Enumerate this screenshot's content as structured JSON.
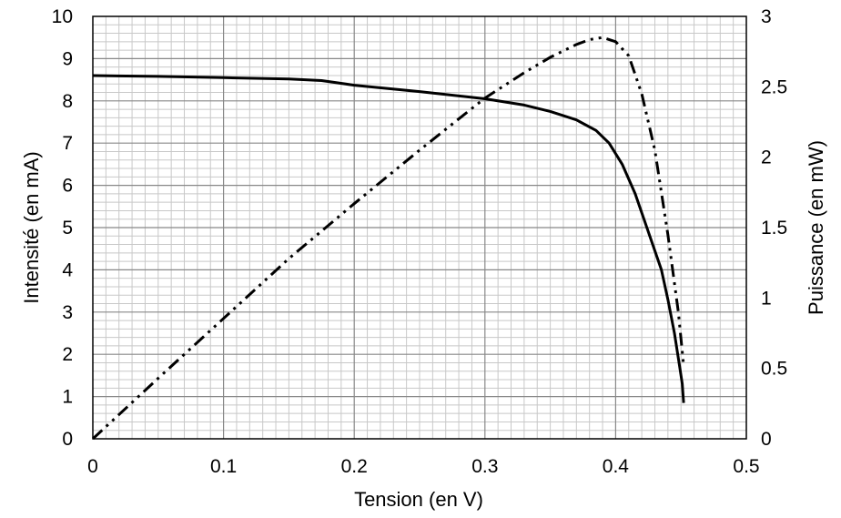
{
  "chart_data": {
    "type": "line",
    "xlabel": "Tension  (en V)",
    "ylabel_left": "Intensité  (en mA)",
    "ylabel_right": "Puissance (en mW)",
    "xlim": [
      0,
      0.5
    ],
    "ylim_left": [
      0,
      10
    ],
    "ylim_right": [
      0,
      3
    ],
    "grid": true,
    "x_ticks": [
      "0",
      "0.1",
      "0.2",
      "0.3",
      "0.4",
      "0.5"
    ],
    "y_left_ticks": [
      "0",
      "1",
      "2",
      "3",
      "4",
      "5",
      "6",
      "7",
      "8",
      "9",
      "10"
    ],
    "y_right_ticks": [
      "0",
      "0.5",
      "1",
      "1.5",
      "2",
      "2.5",
      "3"
    ],
    "series": [
      {
        "axis": "left",
        "style": "solid",
        "points": [
          [
            0,
            8.6
          ],
          [
            0.05,
            8.58
          ],
          [
            0.1,
            8.55
          ],
          [
            0.15,
            8.52
          ],
          [
            0.175,
            8.48
          ],
          [
            0.2,
            8.37
          ],
          [
            0.25,
            8.22
          ],
          [
            0.3,
            8.05
          ],
          [
            0.33,
            7.9
          ],
          [
            0.35,
            7.75
          ],
          [
            0.37,
            7.55
          ],
          [
            0.385,
            7.3
          ],
          [
            0.395,
            7.0
          ],
          [
            0.405,
            6.5
          ],
          [
            0.415,
            5.8
          ],
          [
            0.425,
            4.9
          ],
          [
            0.435,
            4.0
          ],
          [
            0.44,
            3.3
          ],
          [
            0.445,
            2.5
          ],
          [
            0.449,
            1.7
          ],
          [
            0.451,
            1.3
          ],
          [
            0.452,
            0.85
          ]
        ]
      },
      {
        "axis": "right",
        "style": "dash-dot-dot",
        "points": [
          [
            0,
            0
          ],
          [
            0.05,
            0.43
          ],
          [
            0.1,
            0.855
          ],
          [
            0.15,
            1.28
          ],
          [
            0.2,
            1.67
          ],
          [
            0.25,
            2.05
          ],
          [
            0.3,
            2.42
          ],
          [
            0.33,
            2.6
          ],
          [
            0.35,
            2.71
          ],
          [
            0.37,
            2.8
          ],
          [
            0.38,
            2.835
          ],
          [
            0.39,
            2.85
          ],
          [
            0.4,
            2.82
          ],
          [
            0.41,
            2.72
          ],
          [
            0.42,
            2.45
          ],
          [
            0.43,
            2.05
          ],
          [
            0.44,
            1.45
          ],
          [
            0.448,
            0.9
          ],
          [
            0.452,
            0.52
          ]
        ]
      }
    ]
  }
}
